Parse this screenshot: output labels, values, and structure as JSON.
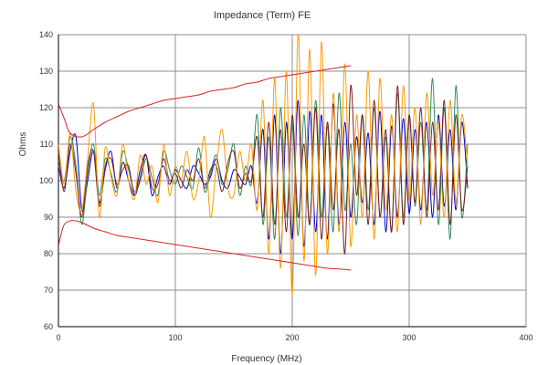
{
  "chart_data": {
    "type": "line",
    "title": "Impedance (Term) FE",
    "xlabel": "Frequency (MHz)",
    "ylabel": "Ohms",
    "xlim": [
      0,
      400
    ],
    "ylim": [
      60,
      140
    ],
    "xticks": [
      0,
      100,
      200,
      300,
      400
    ],
    "yticks": [
      60,
      70,
      80,
      90,
      100,
      110,
      120,
      130,
      140
    ],
    "grid": true,
    "legend": "none",
    "series": [
      {
        "color": "#0000cc",
        "x": [
          0,
          5,
          10,
          15,
          20,
          25,
          30,
          35,
          40,
          45,
          50,
          55,
          60,
          65,
          70,
          75,
          80,
          85,
          90,
          95,
          100,
          105,
          110,
          115,
          120,
          125,
          130,
          135,
          140,
          145,
          150,
          155,
          160,
          165,
          170,
          175,
          180,
          185,
          190,
          195,
          200,
          205,
          210,
          215,
          220,
          225,
          230,
          235,
          240,
          245,
          250,
          255,
          260,
          265,
          270,
          275,
          280,
          285,
          290,
          295,
          300,
          305,
          310,
          315,
          320,
          325,
          330,
          335,
          340,
          345,
          350
        ],
        "y": [
          104,
          98,
          108,
          112,
          92,
          100,
          108,
          94,
          103,
          108,
          98,
          105,
          100,
          96,
          103,
          107,
          96,
          101,
          104,
          99,
          103,
          100,
          98,
          104,
          102,
          99,
          101,
          106,
          100,
          98,
          103,
          101,
          99,
          104,
          94,
          114,
          84,
          118,
          80,
          116,
          84,
          122,
          82,
          119,
          86,
          118,
          84,
          121,
          88,
          116,
          90,
          112,
          94,
          113,
          88,
          119,
          86,
          115,
          90,
          117,
          91,
          114,
          92,
          116,
          90,
          118,
          93,
          114,
          92,
          116,
          98
        ]
      },
      {
        "color": "#2e8b57",
        "x": [
          0,
          5,
          10,
          15,
          20,
          25,
          30,
          35,
          40,
          45,
          50,
          55,
          60,
          65,
          70,
          75,
          80,
          85,
          90,
          95,
          100,
          105,
          110,
          115,
          120,
          125,
          130,
          135,
          140,
          145,
          150,
          155,
          160,
          165,
          170,
          175,
          180,
          185,
          190,
          195,
          200,
          205,
          210,
          215,
          220,
          225,
          230,
          235,
          240,
          245,
          250,
          255,
          260,
          265,
          270,
          275,
          280,
          285,
          290,
          295,
          300,
          305,
          310,
          315,
          320,
          325,
          330,
          335,
          340,
          345,
          350
        ],
        "y": [
          106,
          100,
          112,
          104,
          88,
          102,
          110,
          96,
          106,
          102,
          97,
          108,
          103,
          97,
          100,
          106,
          101,
          96,
          108,
          103,
          99,
          104,
          101,
          98,
          109,
          97,
          102,
          107,
          99,
          103,
          110,
          96,
          104,
          99,
          118,
          88,
          112,
          84,
          120,
          90,
          116,
          85,
          118,
          88,
          122,
          90,
          115,
          86,
          124,
          92,
          110,
          88,
          118,
          92,
          120,
          90,
          112,
          86,
          124,
          90,
          118,
          93,
          116,
          92,
          128,
          88,
          120,
          84,
          126,
          90,
          110
        ]
      },
      {
        "color": "#7a1f1f",
        "x": [
          0,
          5,
          10,
          15,
          20,
          25,
          30,
          35,
          40,
          45,
          50,
          55,
          60,
          65,
          70,
          75,
          80,
          85,
          90,
          95,
          100,
          105,
          110,
          115,
          120,
          125,
          130,
          135,
          140,
          145,
          150,
          155,
          160,
          165,
          170,
          175,
          180,
          185,
          190,
          195,
          200,
          205,
          210,
          215,
          220,
          225,
          230,
          235,
          240,
          245,
          250,
          255,
          260,
          265,
          270,
          275,
          280,
          285,
          290,
          295,
          300,
          305,
          310,
          315,
          320,
          325,
          330,
          335,
          340,
          345,
          350
        ],
        "y": [
          108,
          97,
          110,
          102,
          90,
          104,
          108,
          93,
          104,
          106,
          99,
          103,
          104,
          96,
          101,
          107,
          98,
          99,
          106,
          100,
          102,
          98,
          103,
          100,
          106,
          98,
          103,
          104,
          97,
          105,
          108,
          98,
          102,
          100,
          112,
          90,
          116,
          88,
          114,
          86,
          118,
          90,
          110,
          88,
          120,
          84,
          116,
          92,
          114,
          80,
          126,
          96,
          118,
          88,
          122,
          90,
          114,
          86,
          126,
          88,
          118,
          94,
          120,
          90,
          116,
          92,
          122,
          88,
          118,
          92,
          104
        ]
      },
      {
        "color": "#ff9900",
        "x": [
          0,
          5,
          10,
          15,
          20,
          25,
          30,
          35,
          40,
          45,
          50,
          55,
          60,
          65,
          70,
          75,
          80,
          85,
          90,
          95,
          100,
          105,
          110,
          115,
          120,
          125,
          130,
          135,
          140,
          145,
          150,
          155,
          160,
          165,
          170,
          175,
          180,
          185,
          190,
          195,
          200,
          205,
          210,
          215,
          220,
          225,
          230,
          235,
          240,
          245,
          250,
          255,
          260,
          265,
          270,
          275,
          280,
          285,
          290,
          295,
          300,
          305,
          310,
          315,
          320,
          325,
          330,
          335,
          340,
          345,
          350
        ],
        "y": [
          110,
          99,
          113,
          97,
          92,
          106,
          121,
          90,
          109,
          101,
          96,
          110,
          100,
          95,
          107,
          99,
          104,
          94,
          110,
          96,
          104,
          100,
          108,
          95,
          100,
          112,
          90,
          104,
          114,
          98,
          96,
          108,
          100,
          110,
          92,
          122,
          80,
          128,
          76,
          130,
          69,
          140,
          78,
          136,
          74,
          138,
          80,
          124,
          86,
          132,
          82,
          118,
          90,
          130,
          84,
          128,
          92,
          118,
          86,
          126,
          94,
          120,
          88,
          124,
          96,
          116,
          90,
          122,
          94,
          118,
          104
        ]
      },
      {
        "color": "#dd2222",
        "x": [
          0,
          5,
          10,
          20,
          30,
          40,
          50,
          60,
          70,
          80,
          90,
          100,
          110,
          120,
          130,
          140,
          150,
          160,
          170,
          180,
          190,
          200,
          210,
          220,
          230,
          240,
          250
        ],
        "y": [
          121,
          117,
          113,
          112,
          114,
          116,
          117.5,
          119,
          120,
          121,
          122,
          122.5,
          123,
          123.5,
          124.5,
          125,
          125.5,
          126.5,
          127,
          128,
          128.5,
          129,
          129.5,
          130,
          130.5,
          131,
          131.5
        ]
      },
      {
        "color": "#dd2222",
        "x": [
          0,
          2,
          5,
          10,
          15,
          20,
          30,
          40,
          50,
          60,
          70,
          80,
          90,
          100,
          110,
          120,
          130,
          140,
          150,
          160,
          170,
          180,
          190,
          200,
          210,
          220,
          230,
          240,
          250
        ],
        "y": [
          82,
          85,
          88,
          89,
          89,
          88.5,
          87,
          86,
          85,
          84.5,
          84,
          83.5,
          83,
          82.5,
          82,
          81.5,
          81,
          80.5,
          80,
          79.5,
          79,
          78.5,
          78,
          77.5,
          77,
          76.5,
          76,
          75.8,
          75.5
        ]
      }
    ]
  }
}
